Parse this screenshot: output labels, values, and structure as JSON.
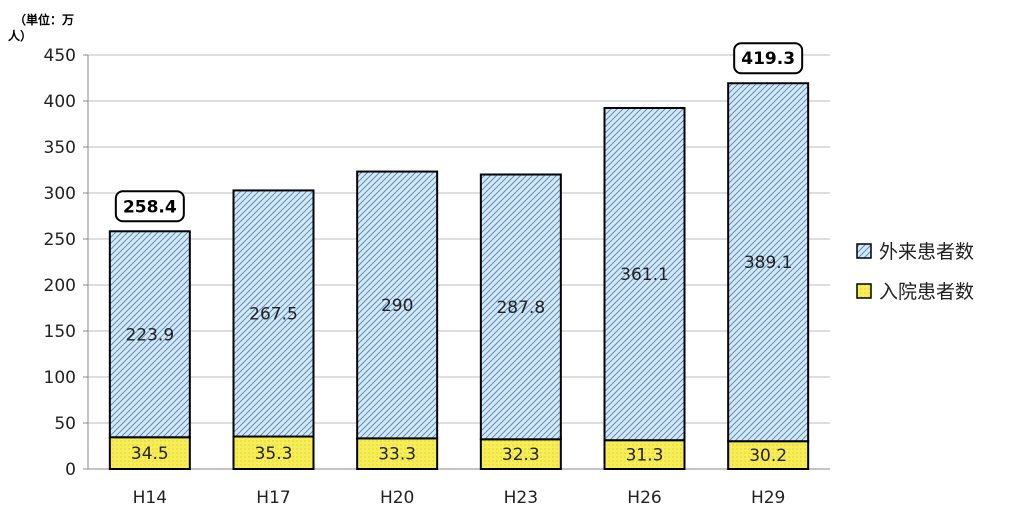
{
  "chart_data": {
    "type": "bar",
    "stacked": true,
    "unit_label": [
      "（単位：万",
      "人）"
    ],
    "categories": [
      "H14",
      "H17",
      "H20",
      "H23",
      "H26",
      "H29"
    ],
    "series": [
      {
        "name": "入院患者数",
        "values": [
          34.5,
          35.3,
          33.3,
          32.3,
          31.3,
          30.2
        ],
        "color": "#f7ee55",
        "labels": [
          "34.5",
          "35.3",
          "33.3",
          "32.3",
          "31.3",
          "30.2"
        ]
      },
      {
        "name": "外来患者数",
        "values": [
          223.9,
          267.5,
          290,
          287.8,
          361.1,
          389.1
        ],
        "color": "#c9dff0",
        "labels": [
          "223.9",
          "267.5",
          "290",
          "287.8",
          "361.1",
          "389.1"
        ]
      }
    ],
    "totals": [
      {
        "category": "H14",
        "value": 258.4,
        "label": "258.4"
      },
      {
        "category": "H29",
        "value": 419.3,
        "label": "419.3"
      }
    ],
    "legend_order": [
      "外来患者数",
      "入院患者数"
    ],
    "ylim": [
      0,
      450
    ],
    "yticks": [
      0,
      50,
      100,
      150,
      200,
      250,
      300,
      350,
      400,
      450
    ],
    "grid": true,
    "legend_position": "right"
  }
}
